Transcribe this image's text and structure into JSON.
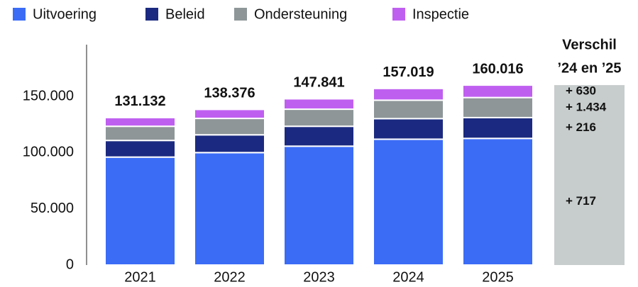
{
  "chart_data": {
    "type": "stacked_bar",
    "categories": [
      "2021",
      "2022",
      "2023",
      "2024",
      "2025"
    ],
    "series": [
      {
        "name": "Uitvoering",
        "color": "#3b6cf6",
        "values": [
          96000,
          100000,
          105700,
          111900,
          112617
        ]
      },
      {
        "name": "Beleid",
        "color": "#1b2a80",
        "values": [
          14800,
          15800,
          17700,
          18300,
          18516
        ]
      },
      {
        "name": "Ondersteuning",
        "color": "#8e9698",
        "values": [
          12600,
          14600,
          15200,
          16400,
          17834
        ]
      },
      {
        "name": "Inspectie",
        "color": "#bf5ff0",
        "values": [
          7732,
          7976,
          9241,
          10419,
          11049
        ]
      }
    ],
    "totals": {
      "values": [
        131132,
        138376,
        147841,
        157019,
        160016
      ],
      "value_labels": [
        "131.132",
        "138.376",
        "147.841",
        "157.019",
        "160.016"
      ]
    },
    "difference": {
      "title": [
        "Verschil",
        "’24 en ’25"
      ],
      "color": "#c7cccc",
      "values": [
        717,
        216,
        1434,
        630
      ],
      "value_labels": [
        "+ 717",
        "+ 216",
        "+ 1.434",
        "+ 630"
      ]
    },
    "ylim": [
      0,
      196000
    ],
    "yticks": [
      0,
      {
        "value": 50000,
        "label": "50.000"
      },
      {
        "value": 100000,
        "label": "100.000"
      },
      {
        "value": 150000,
        "label": "150.000"
      }
    ]
  }
}
